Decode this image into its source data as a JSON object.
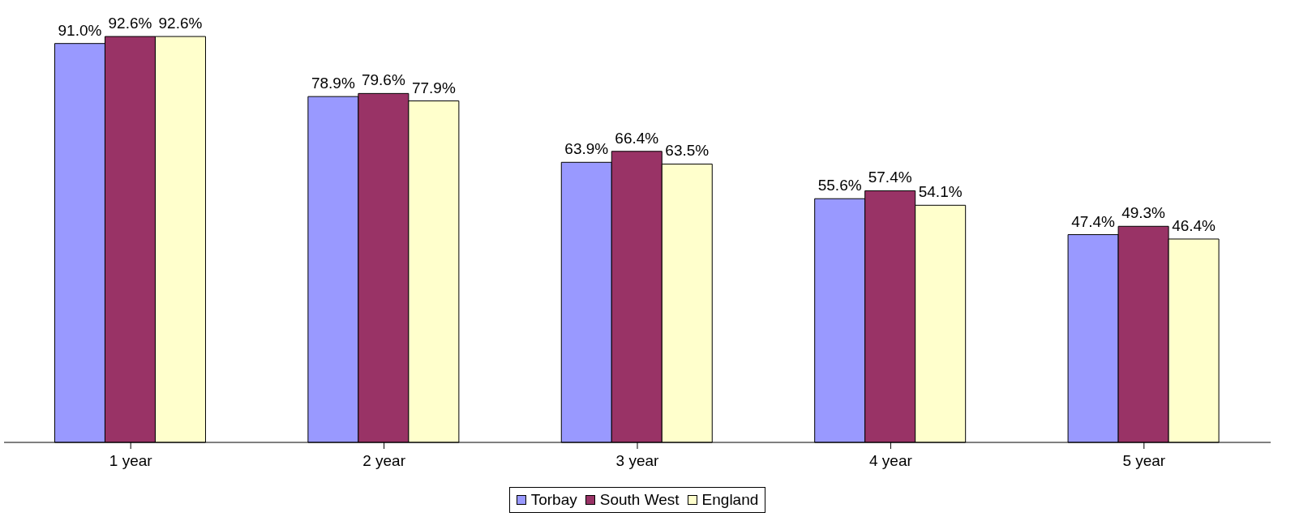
{
  "chart_data": {
    "type": "bar",
    "categories": [
      "1 year",
      "2 year",
      "3 year",
      "4 year",
      "5 year"
    ],
    "series": [
      {
        "name": "Torbay",
        "color": "#9999ff",
        "values": [
          91.0,
          78.9,
          63.9,
          55.6,
          47.4
        ],
        "value_labels": [
          "91.0%",
          "78.9%",
          "63.9%",
          "55.6%",
          "47.4%"
        ]
      },
      {
        "name": "South West",
        "color": "#993366",
        "values": [
          92.6,
          79.6,
          66.4,
          57.4,
          49.3
        ],
        "value_labels": [
          "92.6%",
          "79.6%",
          "66.4%",
          "57.4%",
          "49.3%"
        ]
      },
      {
        "name": "England",
        "color": "#ffffcc",
        "values": [
          92.6,
          77.9,
          63.5,
          54.1,
          46.4
        ],
        "value_labels": [
          "92.6%",
          "77.9%",
          "63.5%",
          "54.1%",
          "46.4%"
        ]
      }
    ],
    "legend": "bottom",
    "grid": false
  }
}
